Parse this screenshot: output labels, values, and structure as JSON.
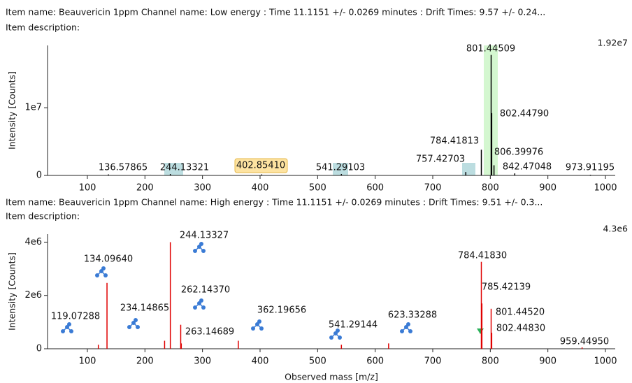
{
  "chart_data": [
    {
      "type": "bar",
      "title": "Item name: Beauvericin 1ppm  Channel name: Low energy : Time 11.1151 +/- 0.0269 minutes : Drift Times: 9.57 +/- 0.24...",
      "subtitle": "Item description:",
      "annotation": "1.92e7",
      "ylabel": "Intensity [Counts]",
      "color": "#000000",
      "x": [
        136.57865,
        244.13321,
        402.8541,
        541.29103,
        757.42703,
        784.41813,
        801.44509,
        802.4479,
        806.39976,
        842.47048,
        973.91195
      ],
      "labels": [
        "136.57865",
        "244.13321",
        "402.85410",
        "541.29103",
        "757.42703",
        "784.41813",
        "801.44509",
        "802.44790",
        "806.39976",
        "842.47048",
        "973.91195"
      ],
      "values": [
        150000,
        200000,
        150000,
        200000,
        500000,
        3800000,
        17800000,
        9200000,
        1500000,
        300000,
        100000
      ],
      "xlim": [
        30.8,
        1017
      ],
      "xticks": [
        100,
        200,
        300,
        400,
        500,
        600,
        700,
        800,
        900,
        1000
      ],
      "ylim": [
        0,
        19200000
      ],
      "yticks": [
        0,
        {
          "value": 10000000,
          "label": "1e7"
        }
      ]
    },
    {
      "type": "bar",
      "title": "Item name: Beauvericin 1ppm  Channel name: High energy : Time 11.1151 +/- 0.0269 minutes : Drift Times: 9.51 +/- 0.3...",
      "subtitle": "Item description:",
      "annotation": "4.3e6",
      "ylabel": "Intensity [Counts]",
      "xlabel": "Observed mass [m/z]",
      "color": "#e00000",
      "x": [
        119.07288,
        134.0964,
        234.14865,
        244.13327,
        262.1437,
        263.14689,
        362.19656,
        541.29144,
        623.33288,
        784.4183,
        785.42139,
        801.4452,
        802.4483,
        959.4495
      ],
      "labels": [
        "119.07288",
        "134.09640",
        "234.14865",
        "244.13327",
        "262.14370",
        "263.14689",
        "362.19656",
        "541.29144",
        "623.33288",
        "784.41830",
        "785.42139",
        "801.44520",
        "802.44830",
        "959.44950"
      ],
      "values": [
        150000,
        2470000,
        300000,
        4000000,
        900000,
        200000,
        300000,
        150000,
        200000,
        3260000,
        1700000,
        1500000,
        600000,
        50000
      ],
      "xlim": [
        30.8,
        1017
      ],
      "xticks": [
        100,
        200,
        300,
        400,
        500,
        600,
        700,
        800,
        900,
        1000
      ],
      "ylim": [
        0,
        4300000
      ],
      "yticks": [
        0,
        {
          "value": 2000000,
          "label": "2e6"
        },
        {
          "value": 4000000,
          "label": "4e6"
        }
      ]
    }
  ]
}
